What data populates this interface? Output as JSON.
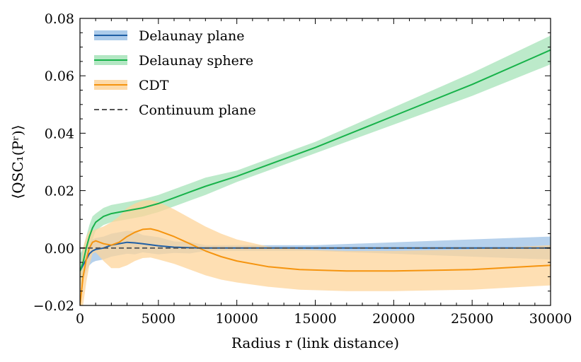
{
  "chart_data": {
    "type": "line",
    "title": "",
    "xlabel": "Radius r (link distance)",
    "ylabel": "⟨QSC₁(Pʳ)⟩",
    "xlim": [
      0,
      30000
    ],
    "ylim": [
      -0.02,
      0.08
    ],
    "xticks": [
      0,
      5000,
      10000,
      15000,
      20000,
      25000,
      30000
    ],
    "yticks": [
      -0.02,
      0.0,
      0.02,
      0.04,
      0.06,
      0.08
    ],
    "xtick_labels": [
      "0",
      "5000",
      "10000",
      "15000",
      "20000",
      "25000",
      "30000"
    ],
    "ytick_labels": [
      "−0.02",
      "0.00",
      "0.02",
      "0.04",
      "0.06",
      "0.08"
    ],
    "grid": false,
    "legend_position": "top-left",
    "series": [
      {
        "name": "Delaunay plane",
        "color": "#1f5fa5",
        "band_color": "#9ec2e6",
        "x": [
          0,
          200,
          400,
          600,
          800,
          1000,
          1500,
          2000,
          2500,
          3000,
          3500,
          4000,
          5000,
          6000,
          7000,
          8000,
          10000,
          12000,
          15000,
          20000,
          25000,
          30000
        ],
        "y": [
          -0.008,
          -0.006,
          -0.004,
          -0.002,
          -0.001,
          -0.0005,
          0.0,
          0.001,
          0.0015,
          0.002,
          0.0018,
          0.0015,
          0.0008,
          0.0003,
          0.0001,
          0.0,
          0.0,
          0.0,
          0.0,
          0.0,
          0.0,
          0.0
        ],
        "band": [
          0.006,
          0.005,
          0.004,
          0.004,
          0.004,
          0.004,
          0.004,
          0.004,
          0.004,
          0.004,
          0.004,
          0.003,
          0.003,
          0.002,
          0.002,
          0.001,
          0.001,
          0.001,
          0.001,
          0.002,
          0.003,
          0.004
        ]
      },
      {
        "name": "Delaunay sphere",
        "color": "#17b24a",
        "band_color": "#a6e3b8",
        "x": [
          0,
          200,
          400,
          600,
          800,
          1000,
          1500,
          2000,
          2500,
          3000,
          4000,
          5000,
          6000,
          7000,
          8000,
          10000,
          12000,
          15000,
          20000,
          25000,
          30000
        ],
        "y": [
          -0.008,
          -0.005,
          0.0,
          0.004,
          0.007,
          0.009,
          0.011,
          0.012,
          0.0125,
          0.013,
          0.014,
          0.0155,
          0.0175,
          0.0195,
          0.0215,
          0.025,
          0.029,
          0.035,
          0.046,
          0.057,
          0.069
        ],
        "band": [
          0.006,
          0.005,
          0.004,
          0.004,
          0.004,
          0.003,
          0.003,
          0.003,
          0.003,
          0.003,
          0.003,
          0.003,
          0.003,
          0.003,
          0.003,
          0.002,
          0.002,
          0.002,
          0.003,
          0.004,
          0.005
        ]
      },
      {
        "name": "CDT",
        "color": "#f5940f",
        "band_color": "#fdd49a",
        "x": [
          0,
          200,
          400,
          600,
          800,
          1000,
          1500,
          2000,
          2500,
          3000,
          3500,
          4000,
          4500,
          5000,
          6000,
          7000,
          8000,
          9000,
          10000,
          12000,
          14000,
          17000,
          20000,
          25000,
          30000
        ],
        "y": [
          -0.02,
          -0.01,
          -0.004,
          0.0,
          0.002,
          0.0025,
          0.0015,
          0.001,
          0.002,
          0.004,
          0.0055,
          0.0065,
          0.0067,
          0.006,
          0.004,
          0.0015,
          -0.001,
          -0.003,
          -0.0045,
          -0.0065,
          -0.0075,
          -0.008,
          -0.008,
          -0.0075,
          -0.006
        ],
        "band": [
          0.01,
          0.01,
          0.008,
          0.006,
          0.004,
          0.004,
          0.006,
          0.008,
          0.009,
          0.01,
          0.01,
          0.01,
          0.01,
          0.01,
          0.0095,
          0.009,
          0.0085,
          0.008,
          0.0075,
          0.007,
          0.007,
          0.007,
          0.007,
          0.007,
          0.007
        ]
      },
      {
        "name": "Continuum plane",
        "color": "#555555",
        "dashed": true,
        "x": [
          0,
          30000
        ],
        "y": [
          0,
          0
        ]
      }
    ]
  }
}
